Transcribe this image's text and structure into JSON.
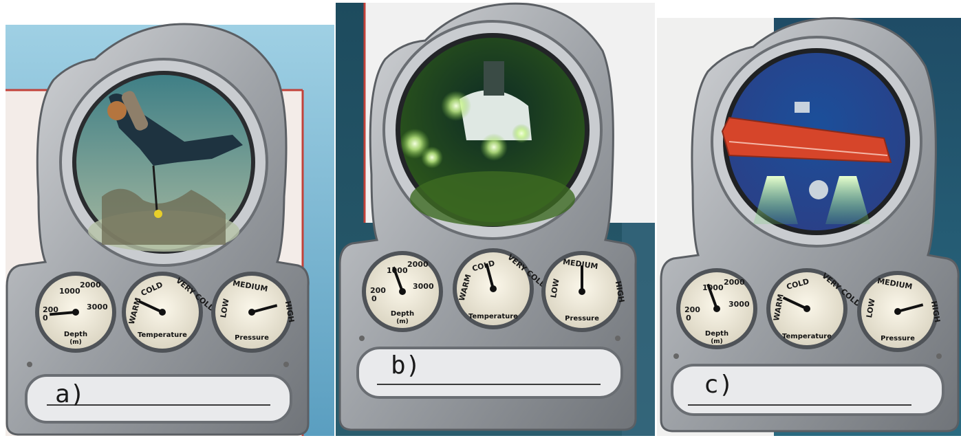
{
  "panels": [
    {
      "id": "a",
      "label": "a)",
      "scene": "diver",
      "colors": {
        "bg_top": "#9fd0e4",
        "bg_bottom": "#5a9ec0",
        "window_top": "#3f7f86",
        "window_bottom": "#a7b9a0"
      },
      "depth_gauge": {
        "title": "Depth",
        "unit": "(m)",
        "ticks": [
          "0",
          "200",
          "1000",
          "2000",
          "3000"
        ],
        "needle": "0"
      },
      "temperature_gauge": {
        "title": "Temperature",
        "ticks": [
          "WARM",
          "COLD",
          "VERY COLD"
        ],
        "needle": "WARM"
      },
      "pressure_gauge": {
        "title": "Pressure",
        "ticks": [
          "LOW",
          "MEDIUM",
          "HIGH"
        ],
        "needle": "HIGH"
      }
    },
    {
      "id": "b",
      "label": "b)",
      "scene": "submersible",
      "colors": {
        "bg_top": "#1d4b5e",
        "bg_bottom": "#2a5d6e",
        "window_top": "#0d2a25",
        "window_bottom": "#2f5a1a"
      },
      "depth_gauge": {
        "title": "Depth",
        "unit": "(m)",
        "ticks": [
          "0",
          "200",
          "1000",
          "2000",
          "3000"
        ],
        "needle": "1000"
      },
      "temperature_gauge": {
        "title": "Temperature",
        "ticks": [
          "WARM",
          "COLD",
          "VERY COLD"
        ],
        "needle": "COLD"
      },
      "pressure_gauge": {
        "title": "Pressure",
        "ticks": [
          "LOW",
          "MEDIUM",
          "HIGH"
        ],
        "needle": "MEDIUM"
      }
    },
    {
      "id": "c",
      "label": "c)",
      "scene": "bathyscaphe",
      "colors": {
        "bg_top": "#1f4c66",
        "bg_bottom": "#2a6a80",
        "window_top": "#1b4f9a",
        "window_bottom": "#2b3f86"
      },
      "depth_gauge": {
        "title": "Depth",
        "unit": "(m)",
        "ticks": [
          "0",
          "200",
          "1000",
          "2000",
          "3000"
        ],
        "needle": "1000"
      },
      "temperature_gauge": {
        "title": "Temperature",
        "ticks": [
          "WARM",
          "COLD",
          "VERY COLD"
        ],
        "needle": "WARM"
      },
      "pressure_gauge": {
        "title": "Pressure",
        "ticks": [
          "LOW",
          "MEDIUM",
          "HIGH"
        ],
        "needle": "HIGH"
      }
    }
  ]
}
